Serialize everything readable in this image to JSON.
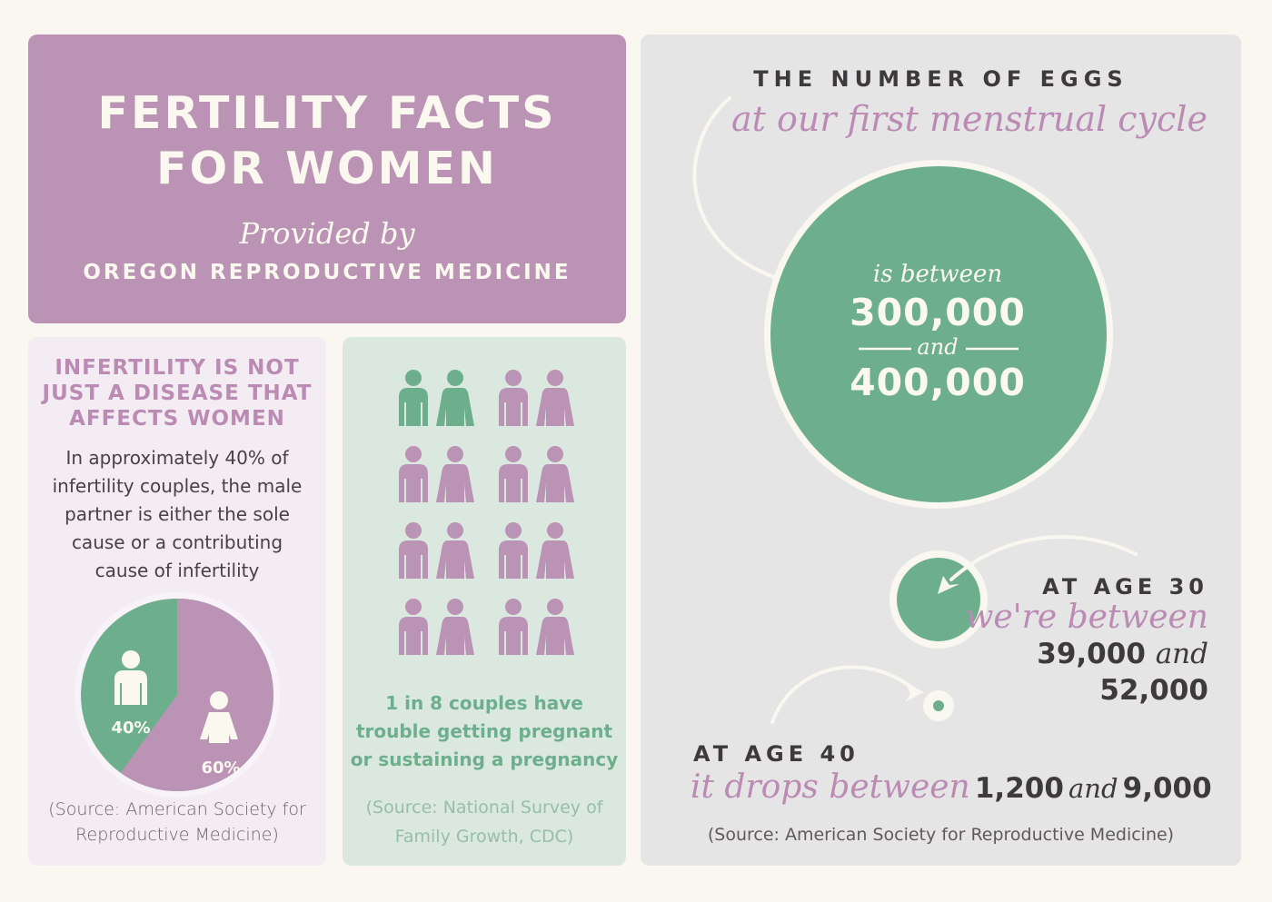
{
  "header": {
    "title_line1": "FERTILITY FACTS",
    "title_line2": "FOR WOMEN",
    "provided_by": "Provided by",
    "organization": "OREGON REPRODUCTIVE MEDICINE"
  },
  "men_panel": {
    "heading": "INFERTILITY IS NOT JUST A DISEASE THAT AFFECTS WOMEN",
    "body": "In approximately 40% of infertility couples, the male partner is either the sole cause or a contributing cause of infertility",
    "pie": {
      "male_label": "40%",
      "female_label": "60%",
      "male_value": 40,
      "female_value": 60
    },
    "source": "(Source: American Society for Reproductive Medicine)"
  },
  "couples_panel": {
    "total_couples": 8,
    "highlighted_couples": 1,
    "text": "1 in 8 couples have trouble getting pregnant or sustaining a pregnancy",
    "source": "(Source: National Survey of Family Growth, CDC)"
  },
  "eggs_panel": {
    "title": "THE NUMBER OF EGGS",
    "subtitle": "at our first menstrual cycle",
    "between_text": "is between",
    "range_min": "300,000",
    "and_text": "and",
    "range_max": "400,000",
    "age30": {
      "label": "AT AGE 30",
      "script": "we're between",
      "min": "39,000",
      "and_text": "and",
      "max": "52,000"
    },
    "age40": {
      "label": "AT AGE 40",
      "script": "it drops between",
      "min": "1,200",
      "and_text": "and",
      "max": "9,000"
    },
    "source": "(Source: American Society for Reproductive Medicine)"
  },
  "colors": {
    "purple": "#bb93b5",
    "green": "#6daf8d",
    "cream": "#faf7f0",
    "gray": "#e5e5e6"
  }
}
